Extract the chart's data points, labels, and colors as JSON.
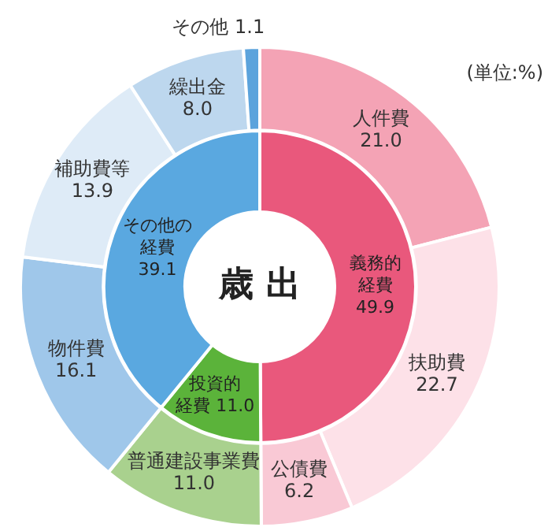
{
  "chart_data": [
    {
      "type": "donut",
      "annotations": [
        "(単位:%)"
      ],
      "categories": [
        "人件費",
        "扶助費",
        "公債費",
        "普通建設事業費",
        "物件費",
        "補助費等",
        "繰出金",
        "その他"
      ],
      "values": [
        21.0,
        22.7,
        6.2,
        11.0,
        16.1,
        13.9,
        8.0,
        1.1
      ],
      "value_labels": [
        "21.0",
        "22.7",
        "6.2",
        "11.0",
        "16.1",
        "13.9",
        "8.0",
        "1.1"
      ],
      "colors": [
        "#f4a3b5",
        "#fde1e8",
        "#f9c9d5",
        "#a9d18e",
        "#9fc7ea",
        "#deebf7",
        "#bdd7ee",
        "#5ba3dc"
      ]
    },
    {
      "type": "donut",
      "title": "歳出",
      "categories": [
        "義務的経費",
        "投資的経費",
        "その他の経費"
      ],
      "values": [
        49.9,
        11.0,
        39.1
      ],
      "value_labels": [
        "49.9",
        "11.0",
        "39.1"
      ],
      "colors": [
        "#e9587c",
        "#5bb33a",
        "#5aa8e0"
      ]
    }
  ]
}
